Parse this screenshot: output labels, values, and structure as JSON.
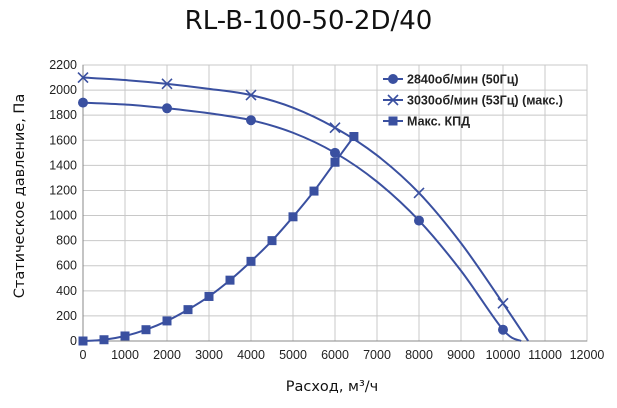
{
  "chart_data": {
    "type": "line",
    "title": "RL-B-100-50-2D/40",
    "xlabel": "Расход, м³/ч",
    "ylabel": "Статическое давление, Па",
    "xlim": [
      0,
      12000
    ],
    "ylim": [
      0,
      2200
    ],
    "xticks": [
      0,
      1000,
      2000,
      3000,
      4000,
      5000,
      6000,
      7000,
      8000,
      9000,
      10000,
      11000,
      12000
    ],
    "yticks": [
      0,
      200,
      400,
      600,
      800,
      1000,
      1200,
      1400,
      1600,
      1800,
      2000,
      2200
    ],
    "grid": true,
    "legend_position": "top-right",
    "series": [
      {
        "name": "2840об/мин (50Гц)",
        "marker": "circle",
        "color": "#3a50a0",
        "curve": {
          "x": [
            0,
            1000,
            2000,
            3000,
            4000,
            5000,
            6000,
            7000,
            8000,
            9000,
            10000,
            10430
          ],
          "y": [
            1900,
            1885,
            1855,
            1815,
            1760,
            1660,
            1500,
            1270,
            960,
            560,
            90,
            0
          ]
        },
        "markers": {
          "x": [
            0,
            2000,
            4000,
            6000,
            8000,
            10000
          ],
          "y": [
            1900,
            1855,
            1760,
            1500,
            960,
            90
          ]
        }
      },
      {
        "name": "3030об/мин  (53Гц) (макс.)",
        "marker": "x",
        "color": "#3a50a0",
        "curve": {
          "x": [
            0,
            1000,
            2000,
            3000,
            4000,
            5000,
            6000,
            7000,
            8000,
            9000,
            10000,
            10600
          ],
          "y": [
            2100,
            2080,
            2050,
            2010,
            1960,
            1860,
            1700,
            1480,
            1180,
            780,
            300,
            0
          ]
        },
        "markers": {
          "x": [
            0,
            2000,
            4000,
            6000,
            8000,
            10000
          ],
          "y": [
            2100,
            2050,
            1960,
            1700,
            1180,
            300
          ]
        }
      },
      {
        "name": "Макс. КПД",
        "marker": "square",
        "color": "#3a50a0",
        "curve": {
          "x": [
            0,
            500,
            1000,
            1500,
            2000,
            2500,
            3000,
            3500,
            4000,
            4500,
            5000,
            5500,
            6000,
            6450
          ],
          "y": [
            0,
            10,
            40,
            90,
            160,
            250,
            355,
            485,
            635,
            800,
            990,
            1195,
            1425,
            1630
          ]
        },
        "markers": {
          "x": [
            0,
            500,
            1000,
            1500,
            2000,
            2500,
            3000,
            3500,
            4000,
            4500,
            5000,
            5500,
            6000,
            6450
          ],
          "y": [
            0,
            10,
            40,
            90,
            160,
            250,
            355,
            485,
            635,
            800,
            990,
            1195,
            1425,
            1630
          ]
        }
      }
    ]
  }
}
